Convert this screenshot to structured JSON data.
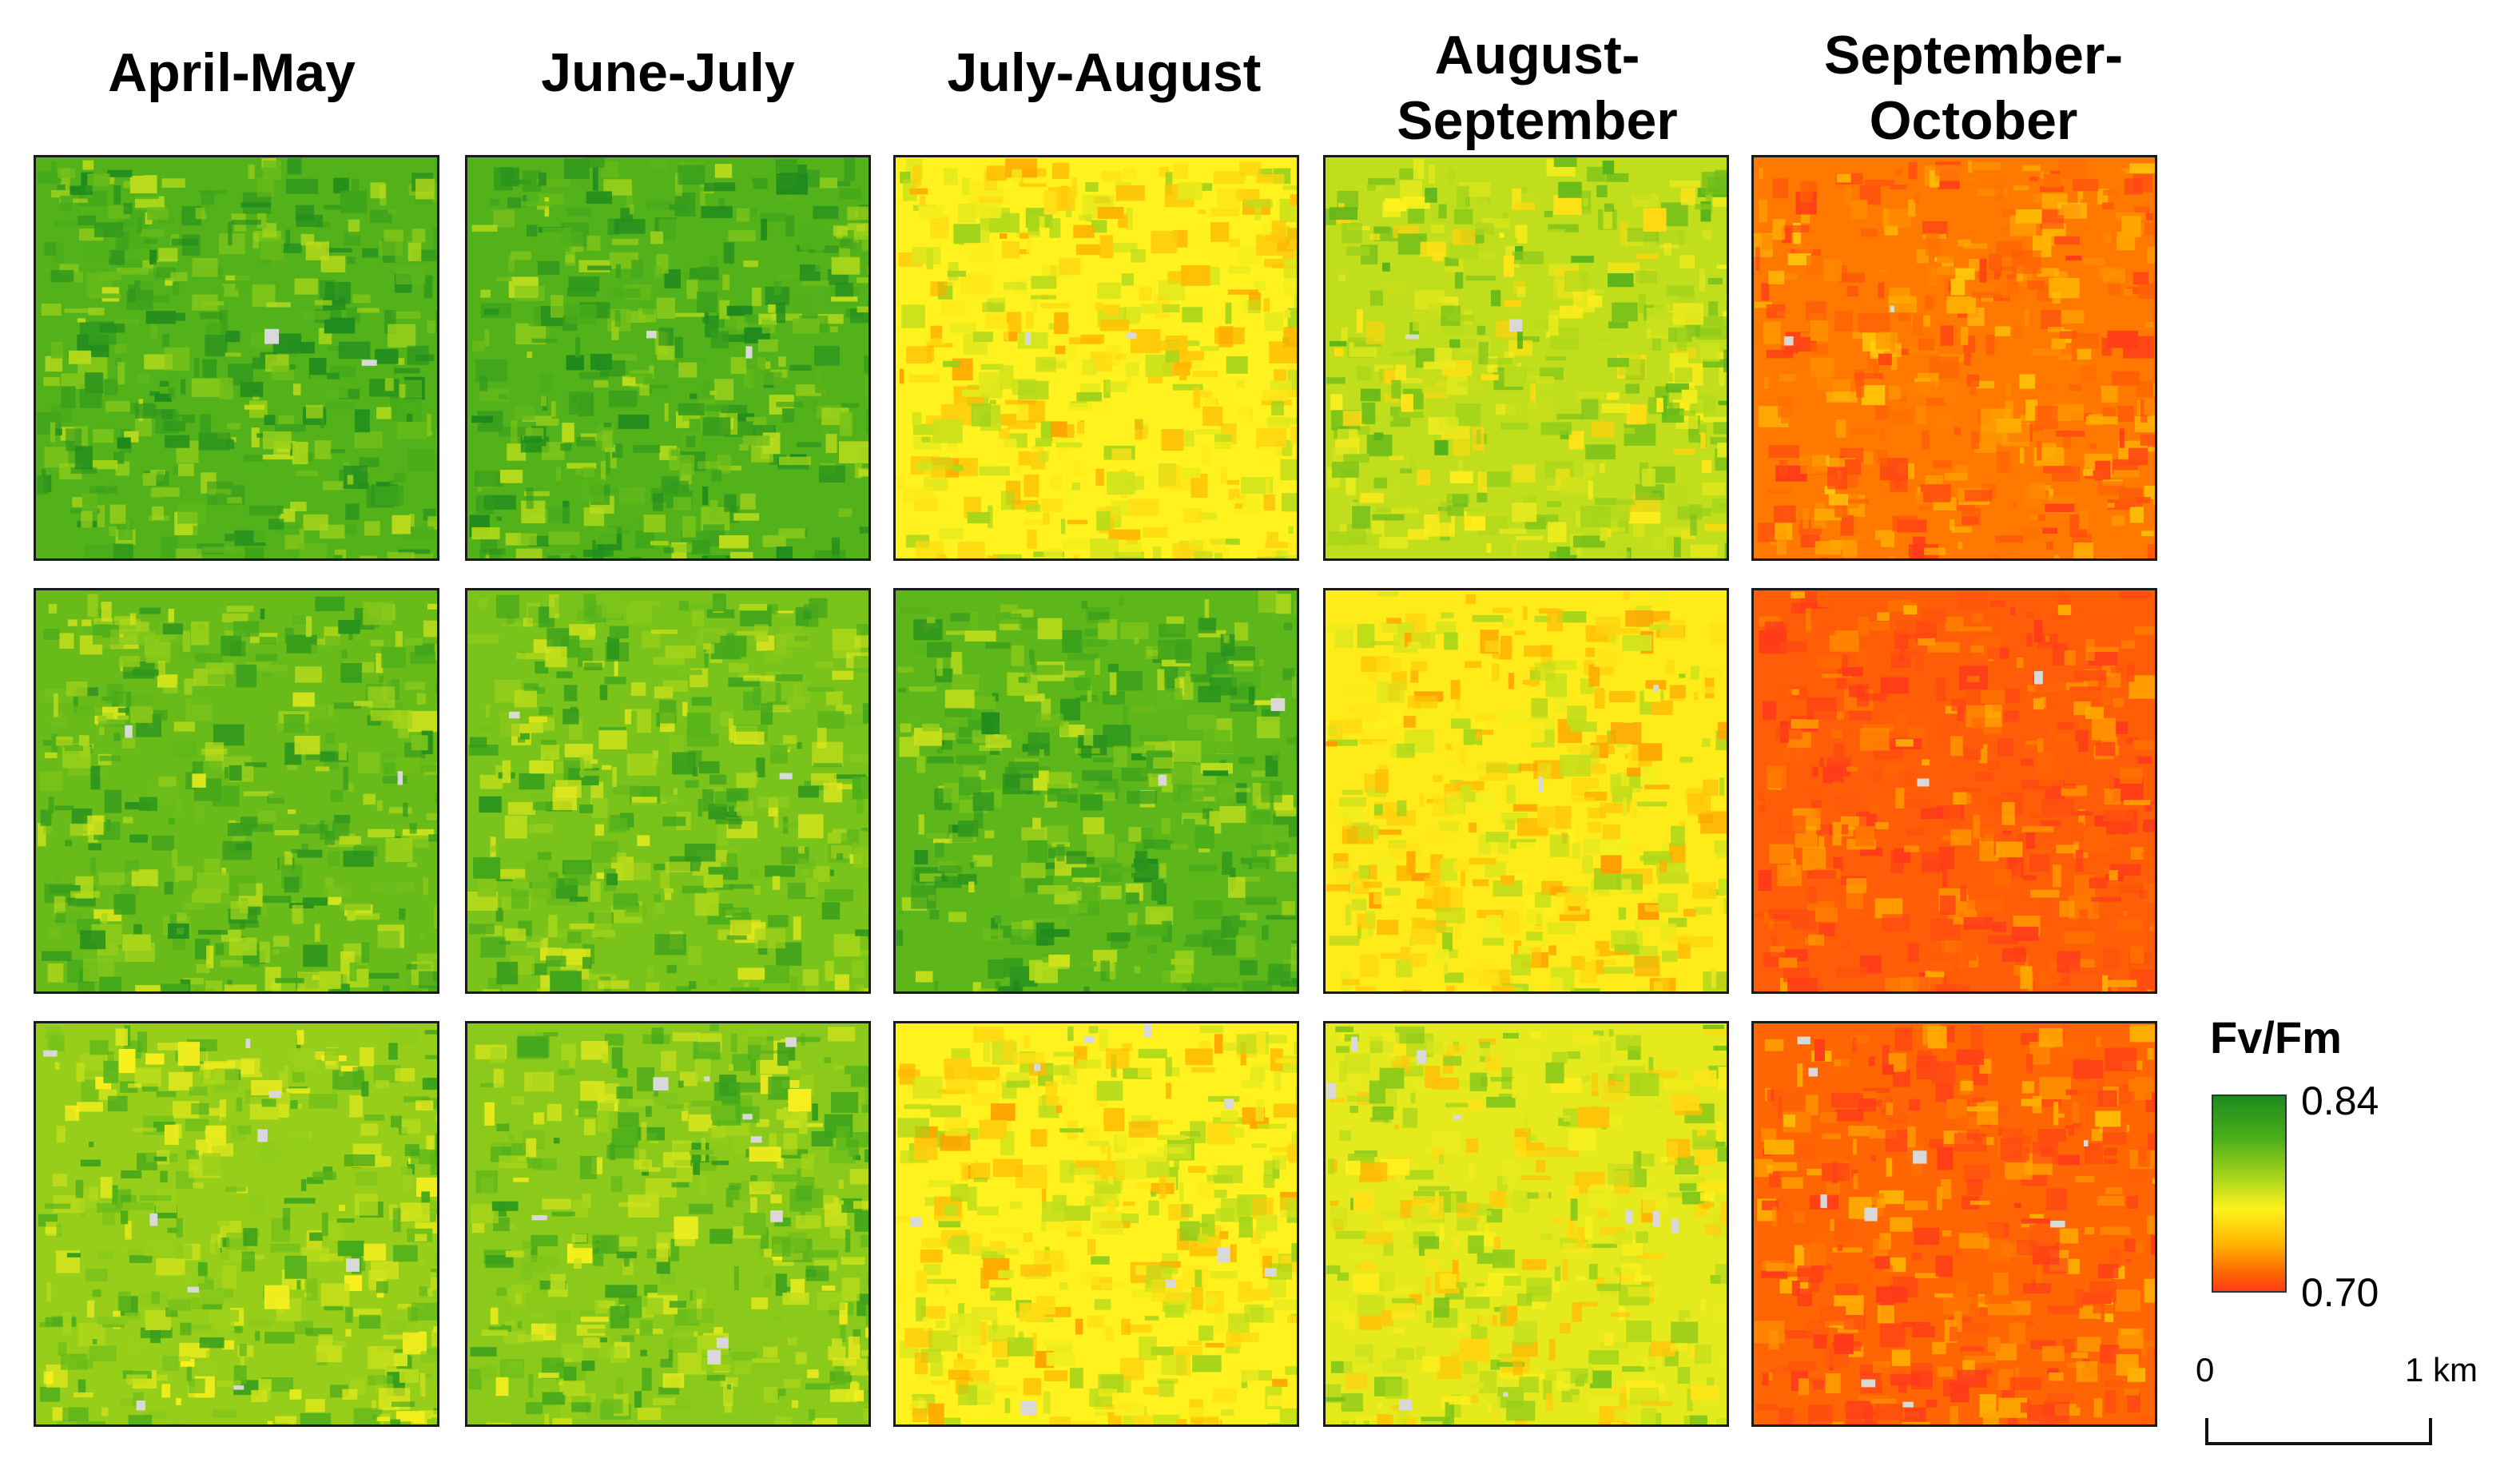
{
  "columns": [
    {
      "line1": "April-May",
      "line2": ""
    },
    {
      "line1": "June-July",
      "line2": ""
    },
    {
      "line1": "July-August",
      "line2": ""
    },
    {
      "line1": "August-",
      "line2": "September"
    },
    {
      "line1": "September-",
      "line2": "October"
    }
  ],
  "legend": {
    "title": "Fv/Fm",
    "max_label": "0.84",
    "min_label": "0.70",
    "colors": [
      "#1e8a1e",
      "#4caf1a",
      "#a8d61a",
      "#fff21e",
      "#ffb400",
      "#ff6a00",
      "#ff3b1a"
    ]
  },
  "scale_bar": {
    "start_label": "0",
    "end_label": "1 km"
  },
  "tiles": [
    {
      "row": 1,
      "col": 1,
      "fv_fm_level": 0.18
    },
    {
      "row": 1,
      "col": 2,
      "fv_fm_level": 0.18
    },
    {
      "row": 1,
      "col": 3,
      "fv_fm_level": 0.5
    },
    {
      "row": 1,
      "col": 4,
      "fv_fm_level": 0.38
    },
    {
      "row": 1,
      "col": 5,
      "fv_fm_level": 0.8
    },
    {
      "row": 2,
      "col": 1,
      "fv_fm_level": 0.22
    },
    {
      "row": 2,
      "col": 2,
      "fv_fm_level": 0.25
    },
    {
      "row": 2,
      "col": 3,
      "fv_fm_level": 0.2
    },
    {
      "row": 2,
      "col": 4,
      "fv_fm_level": 0.52
    },
    {
      "row": 2,
      "col": 5,
      "fv_fm_level": 0.88
    },
    {
      "row": 3,
      "col": 1,
      "fv_fm_level": 0.3
    },
    {
      "row": 3,
      "col": 2,
      "fv_fm_level": 0.28
    },
    {
      "row": 3,
      "col": 3,
      "fv_fm_level": 0.5
    },
    {
      "row": 3,
      "col": 4,
      "fv_fm_level": 0.45
    },
    {
      "row": 3,
      "col": 5,
      "fv_fm_level": 0.85
    }
  ]
}
